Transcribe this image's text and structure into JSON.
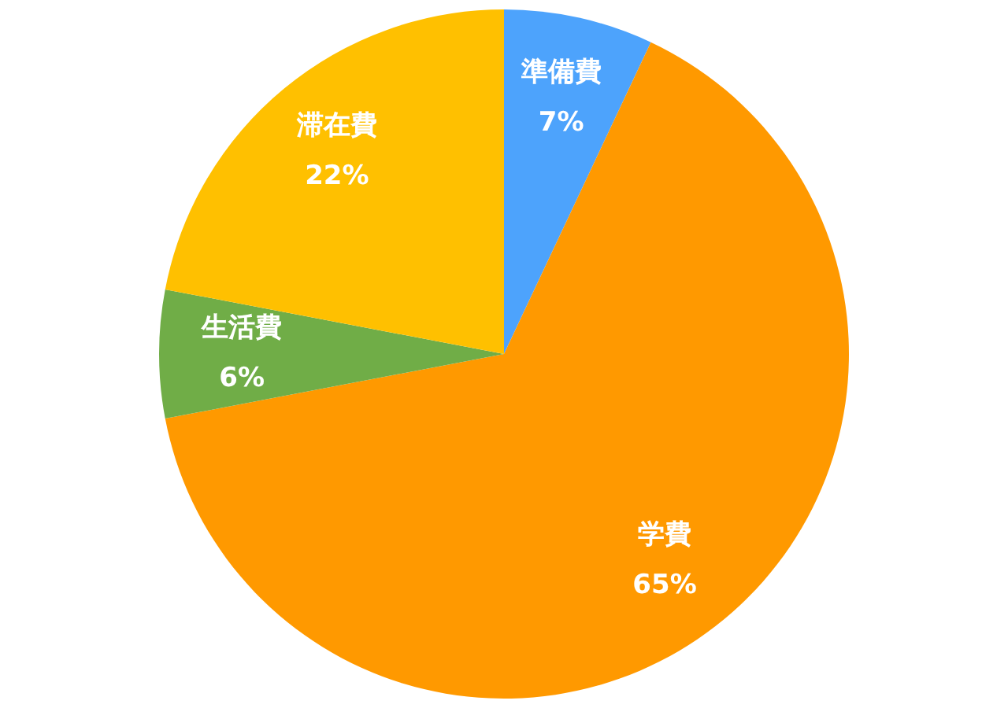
{
  "chart_data": {
    "type": "pie",
    "categories": [
      "準備費",
      "学費",
      "生活費",
      "滞在費"
    ],
    "values": [
      7,
      65,
      6,
      22
    ],
    "colors": [
      "#4da3fc",
      "#ff9900",
      "#70ad47",
      "#ffc000"
    ],
    "value_labels": [
      "7%",
      "65%",
      "6%",
      "22%"
    ],
    "legend": false
  }
}
